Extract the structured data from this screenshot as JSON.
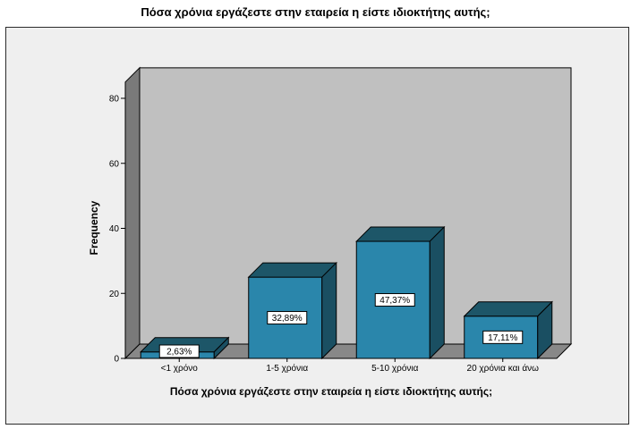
{
  "chart_data": {
    "type": "bar",
    "title": "Πόσα χρόνια εργάζεστε στην εταιρεία η είστε ιδιοκτήτης αυτής;",
    "xlabel": "Πόσα χρόνια εργάζεστε στην εταιρεία η είστε ιδιοκτήτης αυτής;",
    "ylabel": "Frequency",
    "ylim": [
      0,
      85
    ],
    "yticks": [
      0,
      20,
      40,
      60,
      80
    ],
    "categories": [
      "<1 χρόνο",
      "1-5 χρόνια",
      "5-10 χρόνια",
      "20 χρόνια και άνω"
    ],
    "values": [
      2,
      25,
      36,
      13
    ],
    "data_labels": [
      "2,63%",
      "32,89%",
      "47,37%",
      "17,11%"
    ],
    "style": "3d",
    "grid": false,
    "colors": {
      "bar_front": "#2a86ab",
      "bar_top": "#1d5668",
      "bar_side": "#1a4f62",
      "back_wall": "#c0c0c0",
      "left_wall": "#7a7a7a",
      "floor": "#888888",
      "frame_bg": "#efefef"
    }
  }
}
